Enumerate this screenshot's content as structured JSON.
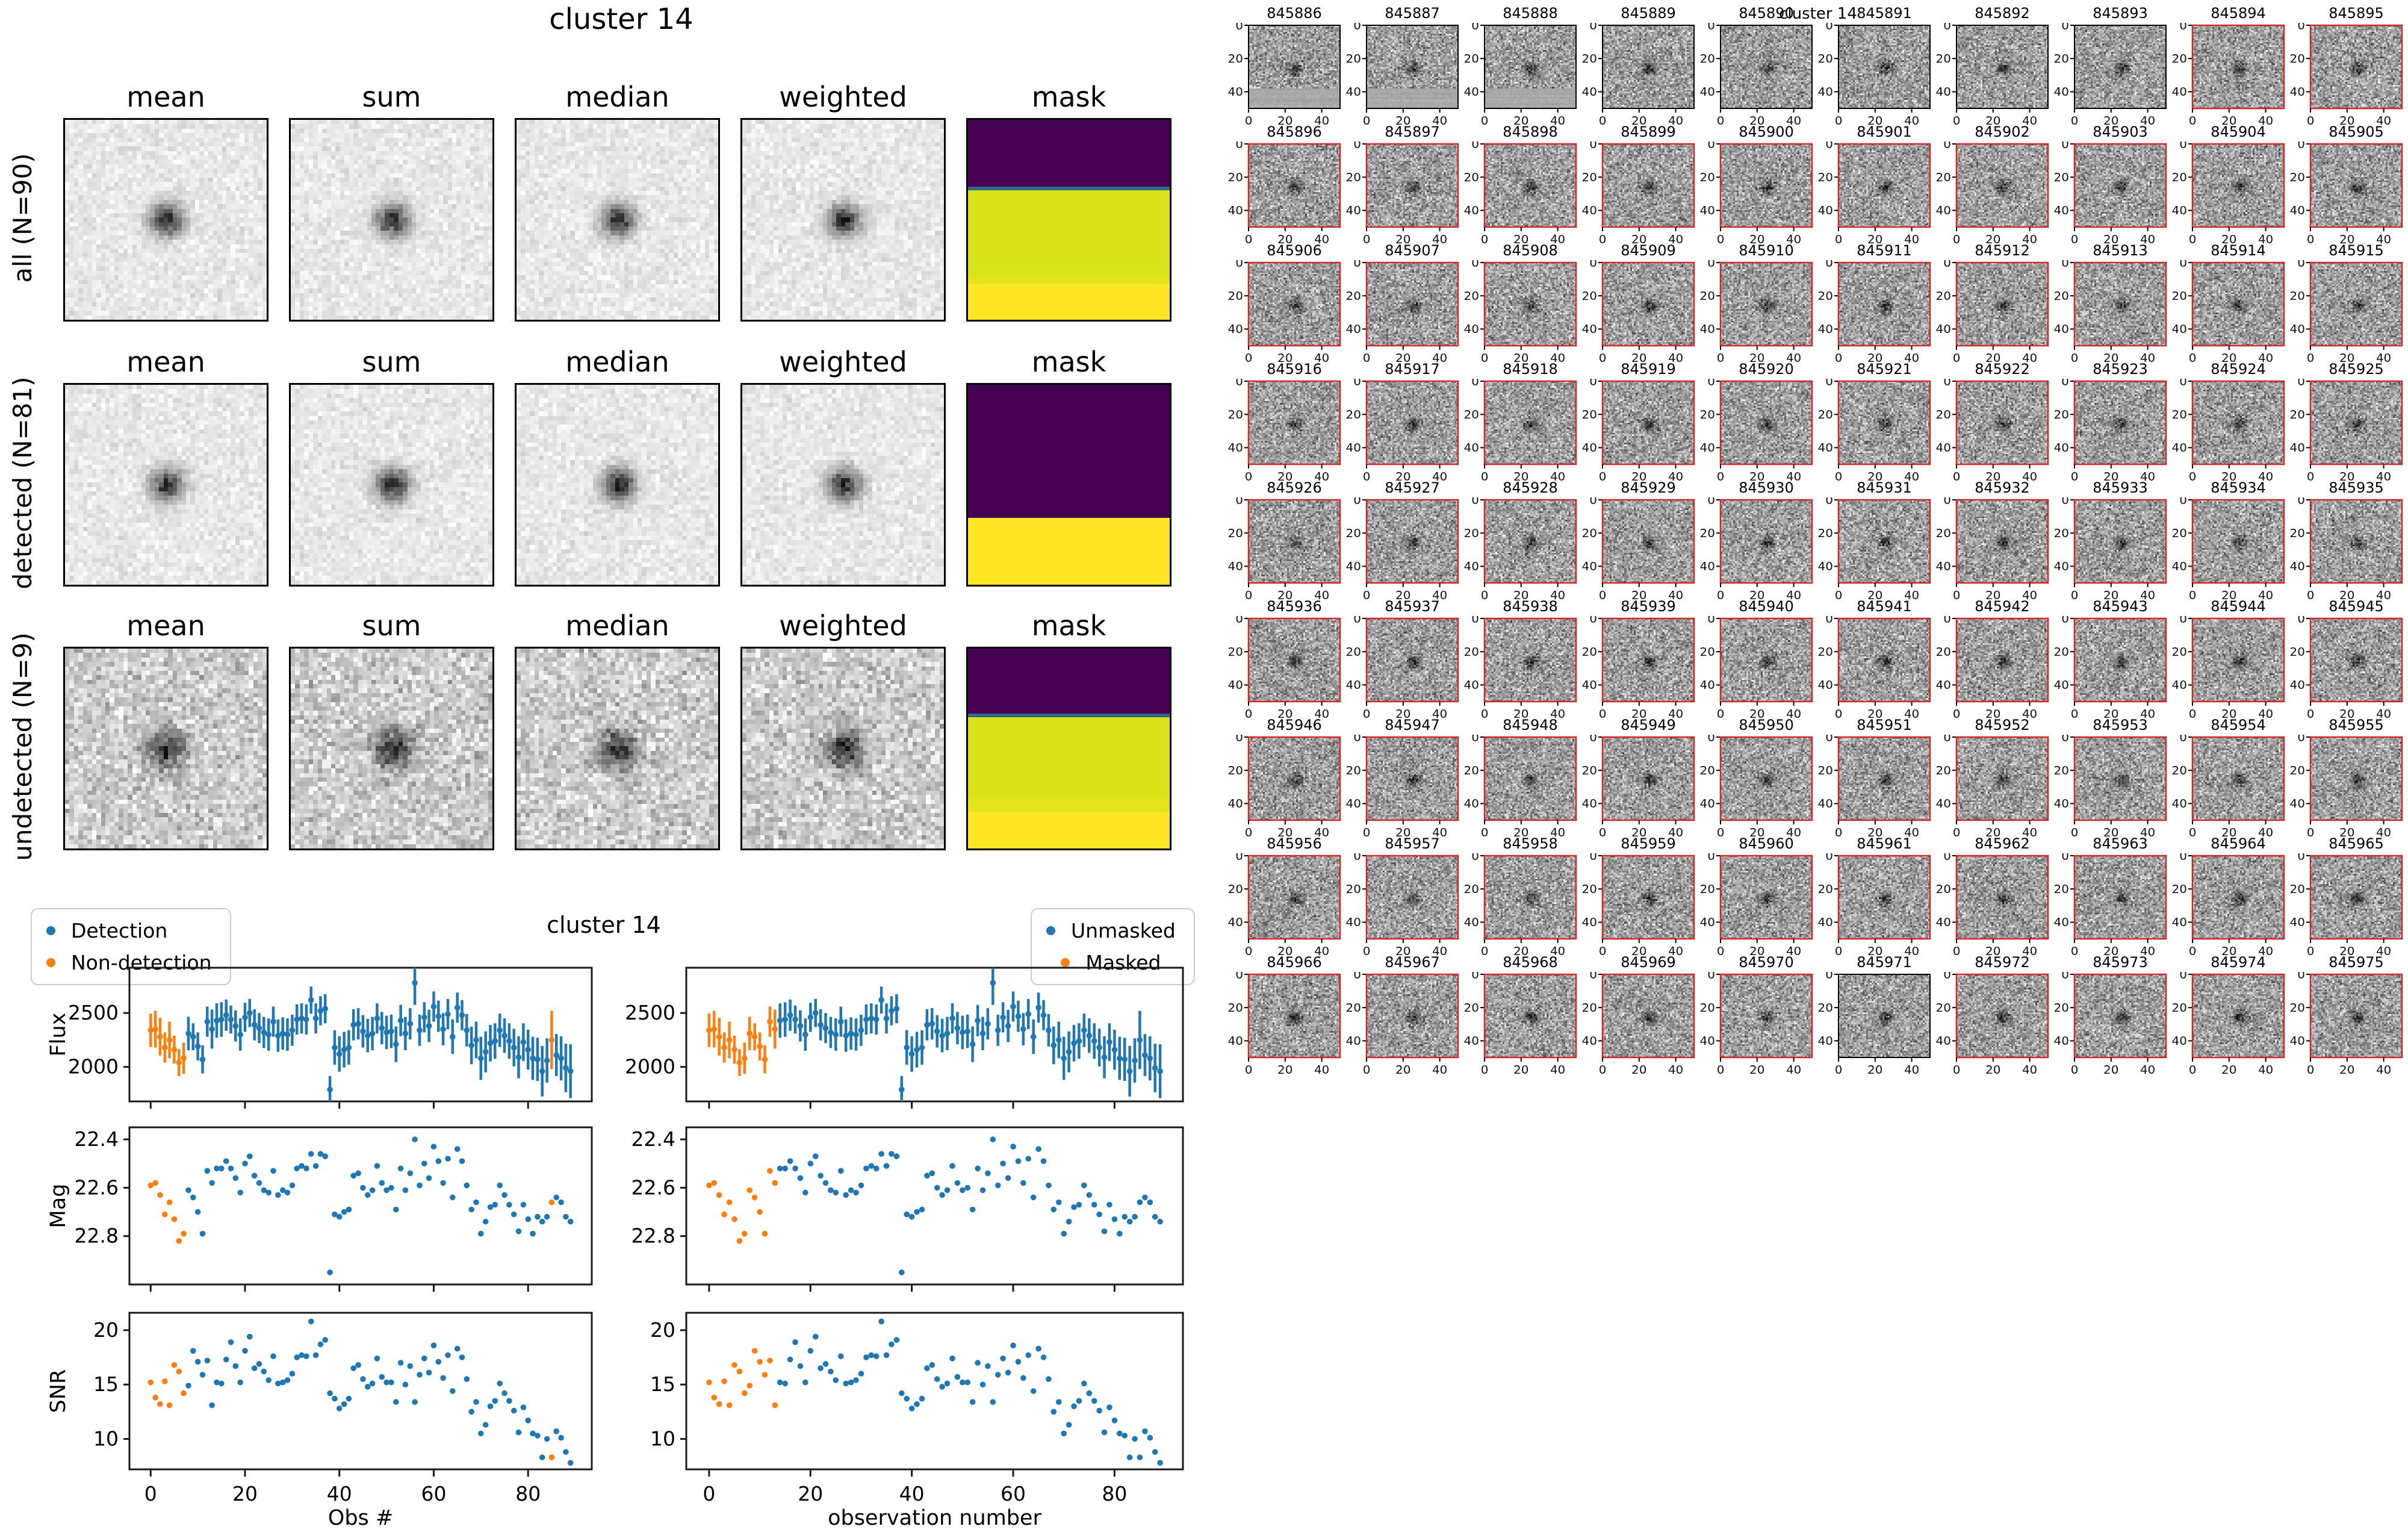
{
  "coadd_panel": {
    "title": "cluster 14",
    "column_headers": [
      "mean",
      "sum",
      "median",
      "weighted",
      "mask"
    ],
    "rows": [
      {
        "label": "all (N=90)",
        "mask_stripes": [
          {
            "color": "#440154",
            "frac": 0.335
          },
          {
            "color": "#31688e",
            "frac": 0.018
          },
          {
            "color": "#d8e219",
            "frac": 0.42
          },
          {
            "color": "#e2e31b",
            "frac": 0.047
          },
          {
            "color": "#fde725",
            "frac": 0.18
          }
        ]
      },
      {
        "label": "detected (N=81)",
        "mask_stripes": [
          {
            "color": "#440154",
            "frac": 0.665
          },
          {
            "color": "#fde725",
            "frac": 0.335
          }
        ]
      },
      {
        "label": "undetected (N=9)",
        "mask_stripes": [
          {
            "color": "#440154",
            "frac": 0.325
          },
          {
            "color": "#31688e",
            "frac": 0.018
          },
          {
            "color": "#d8e219",
            "frac": 0.4
          },
          {
            "color": "#e2e31b",
            "frac": 0.077
          },
          {
            "color": "#fde725",
            "frac": 0.18
          }
        ]
      }
    ]
  },
  "light_curves": {
    "title": "cluster 14",
    "left_legend": {
      "items": [
        {
          "label": "Detection",
          "color": "#1f77b4"
        },
        {
          "label": "Non-detection",
          "color": "#ff7f0e"
        }
      ]
    },
    "right_legend": {
      "items": [
        {
          "label": "Unmasked",
          "color": "#1f77b4"
        },
        {
          "label": "Masked",
          "color": "#ff7f0e"
        }
      ]
    },
    "left_xlabel": "Obs #",
    "right_xlabel": "observation number",
    "ylabels": [
      "Flux",
      "Mag",
      "SNR"
    ],
    "x_ticks": [
      0,
      20,
      40,
      60,
      80
    ],
    "flux_ticks": [
      2000,
      2500
    ],
    "mag_ticks": [
      "22.4",
      "22.6",
      "22.8"
    ],
    "snr_ticks": [
      10,
      15,
      20
    ],
    "chart_data": {
      "type": "scatter",
      "x_description": "observation index 0-89",
      "n_points": 90,
      "xlim": [
        -4.5,
        93.5
      ],
      "flux_ylim": [
        1680,
        2920
      ],
      "mag_ylim_top_to_bottom": [
        22.35,
        23.0
      ],
      "snr_ylim": [
        7.2,
        21.6
      ],
      "point_color": "#1f77b4",
      "flagged_color": "#ff7f0e",
      "non_detection_indices": [
        0,
        1,
        2,
        3,
        4,
        5,
        6,
        7,
        85
      ],
      "masked_indices": [
        0,
        1,
        2,
        3,
        4,
        5,
        6,
        7,
        8,
        9,
        10,
        11,
        12,
        13
      ],
      "flux": [
        2340,
        2350,
        2280,
        2180,
        2250,
        2160,
        2040,
        2080,
        2310,
        2280,
        2190,
        2070,
        2420,
        2350,
        2430,
        2440,
        2480,
        2440,
        2380,
        2300,
        2460,
        2500,
        2390,
        2360,
        2320,
        2300,
        2420,
        2290,
        2310,
        2300,
        2340,
        2440,
        2450,
        2440,
        2620,
        2450,
        2520,
        2540,
        1790,
        2180,
        2120,
        2160,
        2180,
        2390,
        2400,
        2330,
        2290,
        2310,
        2450,
        2360,
        2320,
        2330,
        2210,
        2430,
        2310,
        2400,
        2780,
        2340,
        2460,
        2380,
        2560,
        2470,
        2350,
        2490,
        2280,
        2550,
        2480,
        2340,
        2200,
        2250,
        2080,
        2140,
        2220,
        2240,
        2340,
        2290,
        2240,
        2180,
        2090,
        2230,
        2160,
        2080,
        2070,
        1960,
        2060,
        2250,
        2110,
        2080,
        1990,
        1960
      ],
      "flux_err": [
        155,
        170,
        175,
        140,
        170,
        130,
        125,
        145,
        155,
        125,
        130,
        130,
        140,
        180,
        160,
        160,
        145,
        130,
        145,
        150,
        135,
        130,
        145,
        140,
        145,
        150,
        140,
        150,
        150,
        150,
        145,
        140,
        140,
        140,
        125,
        140,
        135,
        135,
        125,
        160,
        165,
        165,
        160,
        145,
        145,
        150,
        155,
        155,
        140,
        150,
        155,
        155,
        165,
        145,
        155,
        145,
        205,
        145,
        140,
        150,
        140,
        145,
        150,
        140,
        160,
        140,
        140,
        150,
        175,
        170,
        200,
        190,
        170,
        165,
        155,
        160,
        165,
        175,
        195,
        175,
        185,
        200,
        200,
        235,
        205,
        270,
        195,
        205,
        225,
        250
      ],
      "mag": [
        22.59,
        22.58,
        22.63,
        22.71,
        22.66,
        22.73,
        22.82,
        22.79,
        22.61,
        22.64,
        22.7,
        22.79,
        22.53,
        22.58,
        22.52,
        22.52,
        22.49,
        22.52,
        22.56,
        22.62,
        22.5,
        22.47,
        22.55,
        22.58,
        22.61,
        22.62,
        22.53,
        22.63,
        22.61,
        22.62,
        22.59,
        22.52,
        22.51,
        22.52,
        22.46,
        22.51,
        22.46,
        22.47,
        22.95,
        22.71,
        22.72,
        22.7,
        22.69,
        22.55,
        22.54,
        22.6,
        22.63,
        22.61,
        22.51,
        22.58,
        22.61,
        22.6,
        22.69,
        22.52,
        22.61,
        22.54,
        22.4,
        22.59,
        22.5,
        22.56,
        22.43,
        22.49,
        22.58,
        22.48,
        22.64,
        22.44,
        22.49,
        22.59,
        22.69,
        22.66,
        22.79,
        22.74,
        22.68,
        22.67,
        22.59,
        22.63,
        22.67,
        22.71,
        22.78,
        22.67,
        22.73,
        22.79,
        22.72,
        22.74,
        22.72,
        22.66,
        22.64,
        22.66,
        22.72,
        22.74
      ],
      "snr": [
        15.2,
        13.8,
        13.2,
        15.3,
        13.1,
        16.8,
        16.2,
        14.2,
        14.9,
        18.1,
        17.1,
        15.9,
        17.2,
        13.1,
        15.2,
        15.1,
        17.3,
        18.9,
        16.7,
        15.2,
        18.1,
        19.4,
        16.5,
        16.9,
        16.2,
        15.4,
        17.6,
        15.1,
        15.2,
        15.4,
        16.0,
        17.5,
        17.7,
        17.6,
        20.8,
        17.7,
        18.7,
        19.1,
        14.2,
        13.7,
        12.8,
        13.2,
        13.7,
        16.5,
        16.8,
        15.5,
        14.8,
        15.1,
        17.4,
        15.7,
        15.2,
        15.2,
        13.4,
        17.0,
        15.0,
        16.7,
        13.4,
        15.9,
        17.4,
        16.1,
        18.6,
        17.1,
        15.6,
        17.7,
        14.4,
        18.3,
        17.5,
        15.5,
        12.5,
        13.4,
        10.5,
        11.3,
        13.0,
        13.5,
        15.1,
        14.2,
        13.5,
        12.6,
        10.6,
        12.9,
        11.7,
        10.5,
        10.3,
        8.3,
        10.0,
        8.3,
        10.7,
        10.1,
        8.8,
        7.8
      ]
    }
  },
  "thumbnails": {
    "suptitle": "cluster 14",
    "axis_ticks": [
      0,
      20,
      40
    ],
    "highlight_border_color": "#d62728",
    "default_border_color": "#000000",
    "ids": [
      845886,
      845887,
      845888,
      845889,
      845890,
      845891,
      845892,
      845893,
      845894,
      845895,
      845896,
      845897,
      845898,
      845899,
      845900,
      845901,
      845902,
      845903,
      845904,
      845905,
      845906,
      845907,
      845908,
      845909,
      845910,
      845911,
      845912,
      845913,
      845914,
      845915,
      845916,
      845917,
      845918,
      845919,
      845920,
      845921,
      845922,
      845923,
      845924,
      845925,
      845926,
      845927,
      845928,
      845929,
      845930,
      845931,
      845932,
      845933,
      845934,
      845935,
      845936,
      845937,
      845938,
      845939,
      845940,
      845941,
      845942,
      845943,
      845944,
      845945,
      845946,
      845947,
      845948,
      845949,
      845950,
      845951,
      845952,
      845953,
      845954,
      845955,
      845956,
      845957,
      845958,
      845959,
      845960,
      845961,
      845962,
      845963,
      845964,
      845965,
      845966,
      845967,
      845968,
      845969,
      845970,
      845971,
      845972,
      845973,
      845974,
      845975
    ],
    "black_border_ids": [
      845886,
      845887,
      845888,
      845889,
      845890,
      845891,
      845892,
      845893,
      845971
    ],
    "smeared_ids": [
      845886,
      845887,
      845888
    ]
  }
}
